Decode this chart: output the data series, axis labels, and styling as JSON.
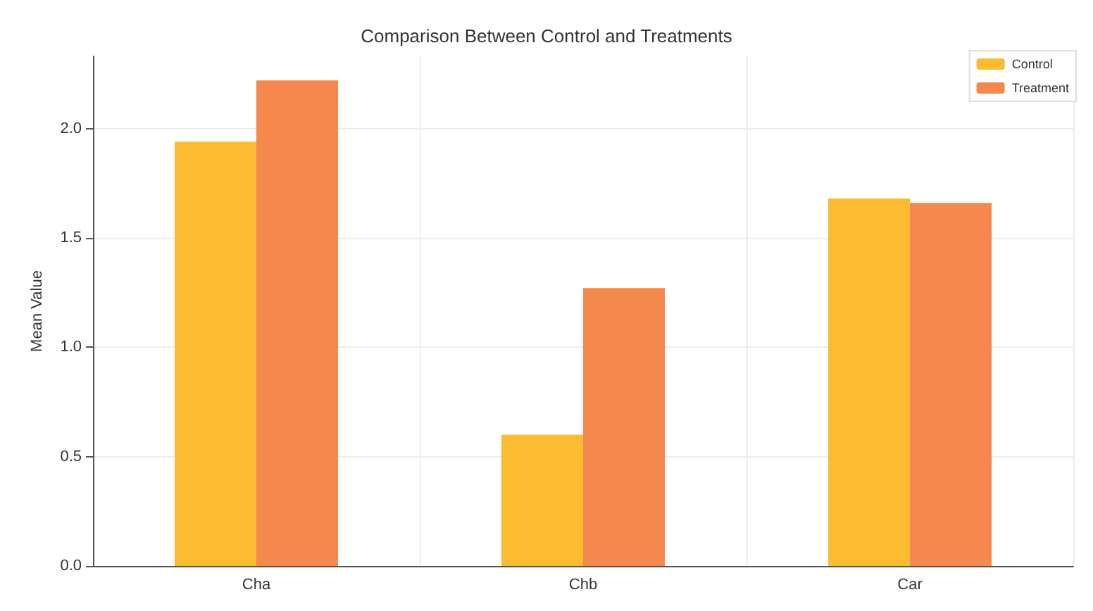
{
  "chart_data": {
    "type": "bar",
    "title": "Comparison Between Control and Treatments",
    "ylabel": "Mean Value",
    "categories": [
      "Cha",
      "Chb",
      "Car"
    ],
    "series": [
      {
        "name": "Control",
        "color": "#fbbc32",
        "values": [
          1.94,
          0.6,
          1.68
        ]
      },
      {
        "name": "Treatment",
        "color": "#f4884d",
        "values": [
          2.22,
          1.27,
          1.66
        ]
      }
    ],
    "ylim": [
      0,
      2.33
    ],
    "yticks": [
      {
        "value": 0,
        "label": "0.0"
      },
      {
        "value": 0.5,
        "label": "0.5"
      },
      {
        "value": 1,
        "label": "1.0"
      },
      {
        "value": 1.5,
        "label": "1.5"
      },
      {
        "value": 2,
        "label": "2.0"
      }
    ],
    "grid": true,
    "legend": "top right"
  }
}
